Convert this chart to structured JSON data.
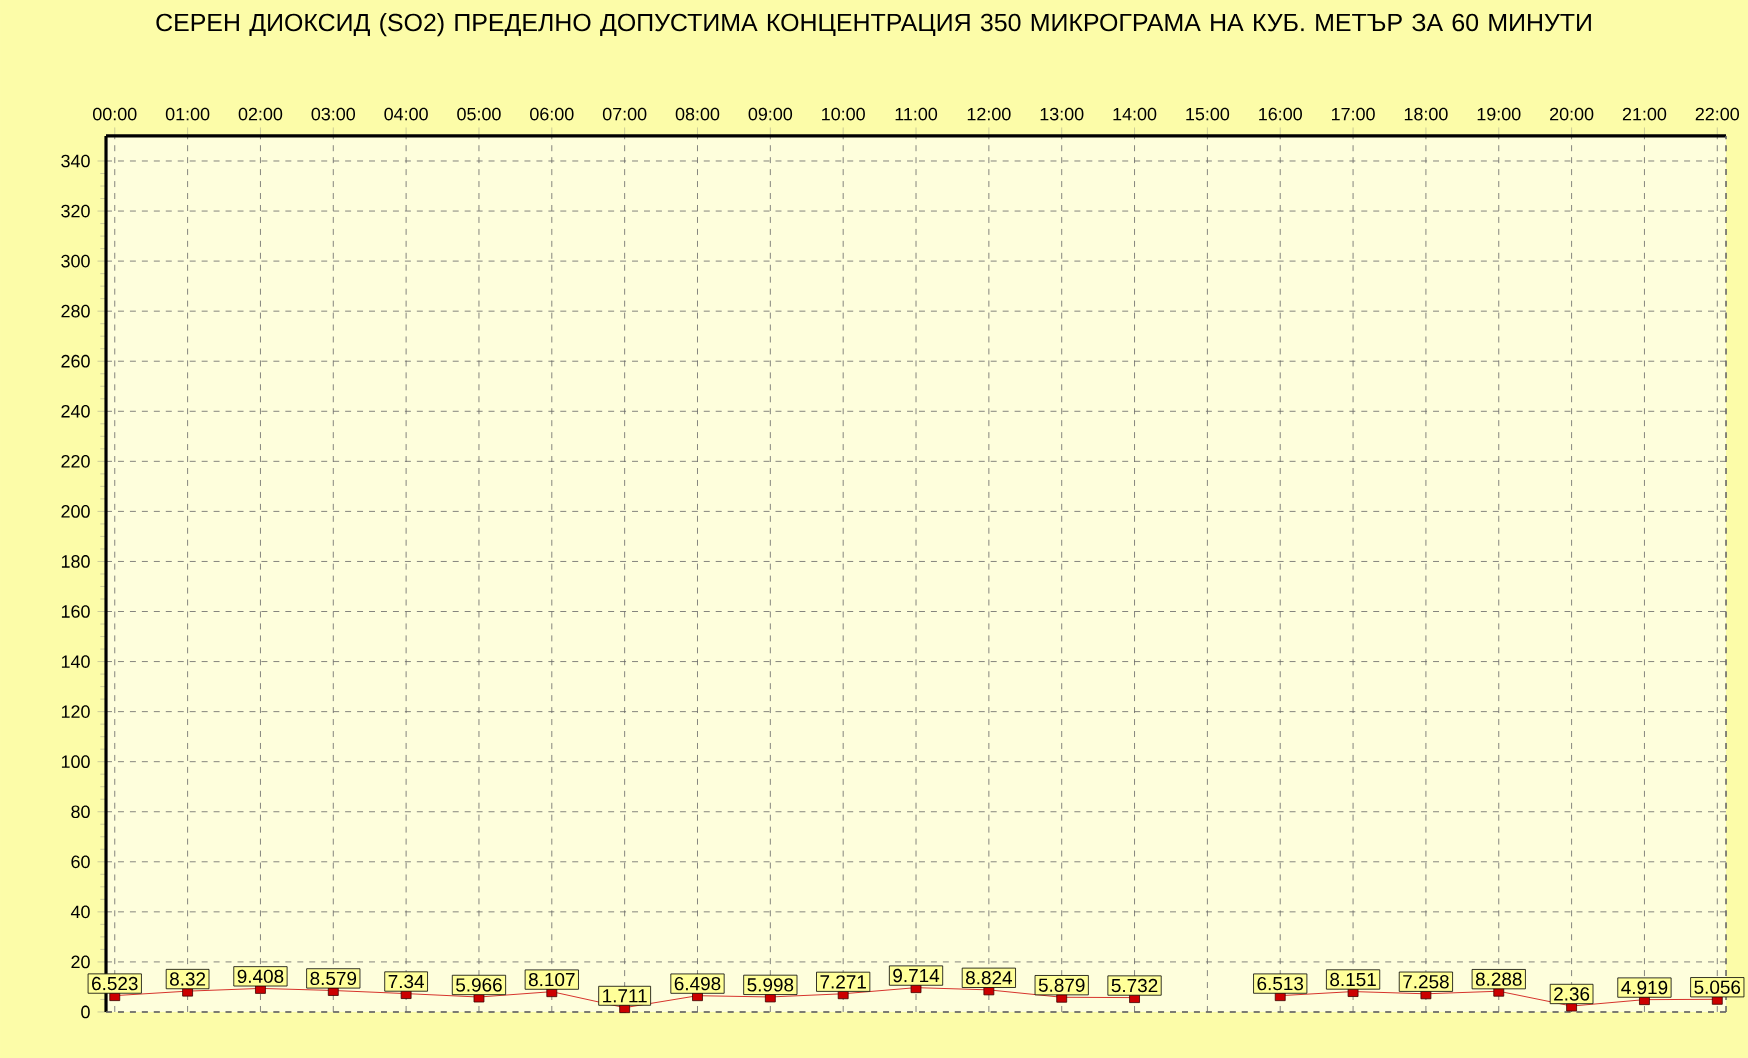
{
  "chart_data": {
    "type": "line",
    "title": "СЕРЕН ДИОКСИД  (SO2)  ПРЕДЕЛНО ДОПУСТИМА КОНЦЕНТРАЦИЯ 350 МИКРОГРАМА  НА КУБ. МЕТЪР ЗА 60 МИНУТИ",
    "categories": [
      "00:00",
      "01:00",
      "02:00",
      "03:00",
      "04:00",
      "05:00",
      "06:00",
      "07:00",
      "08:00",
      "09:00",
      "10:00",
      "11:00",
      "12:00",
      "13:00",
      "14:00",
      "15:00",
      "16:00",
      "17:00",
      "18:00",
      "19:00",
      "20:00",
      "21:00",
      "22:00"
    ],
    "values": [
      6.523,
      8.32,
      9.408,
      8.579,
      7.34,
      5.966,
      8.107,
      1.711,
      6.498,
      5.998,
      7.271,
      9.714,
      8.824,
      5.879,
      5.732,
      null,
      6.513,
      8.151,
      7.258,
      8.288,
      2.36,
      4.919,
      5.056
    ],
    "color": "#cc0000",
    "marker": "square",
    "line_style": "solid",
    "ylim": [
      0,
      350
    ],
    "yticks": [
      0,
      20,
      40,
      60,
      80,
      100,
      120,
      140,
      160,
      180,
      200,
      220,
      240,
      260,
      280,
      300,
      320,
      340
    ],
    "grid": true,
    "data_labels": true
  }
}
